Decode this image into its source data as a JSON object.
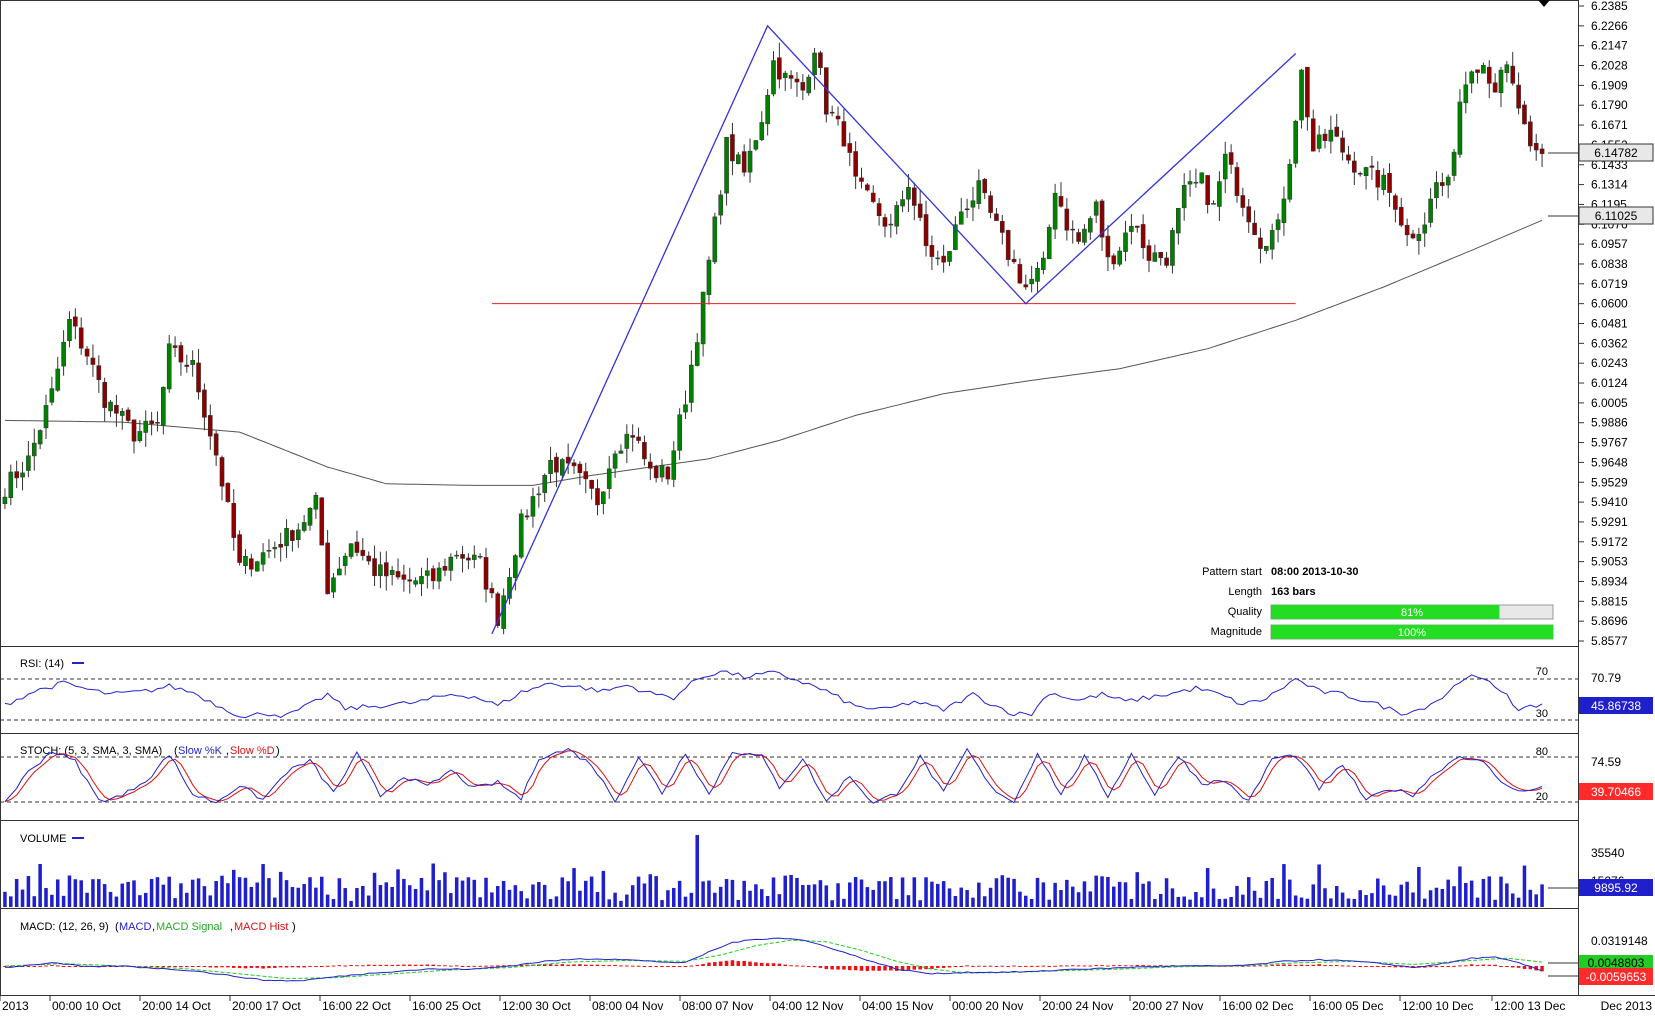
{
  "price_panel": {
    "y_ticks": [
      "6.2385",
      "6.2266",
      "6.2147",
      "6.2028",
      "6.1909",
      "6.1790",
      "6.1671",
      "6.1552",
      "6.1433",
      "6.1314",
      "6.1195",
      "6.1076",
      "6.0957",
      "6.0838",
      "6.0719",
      "6.0600",
      "6.0481",
      "6.0362",
      "6.0243",
      "6.0124",
      "6.0005",
      "5.9886",
      "5.9767",
      "5.9648",
      "5.9529",
      "5.9410",
      "5.9291",
      "5.9172",
      "5.9053",
      "5.8934",
      "5.8815",
      "5.8696",
      "5.8577"
    ],
    "current_price_label": "6.14782",
    "ma_label": "6.11025",
    "pattern_info": {
      "start_label": "Pattern start",
      "start_value": "08:00 2013-10-30",
      "length_label": "Length",
      "length_value": "163 bars",
      "quality_label": "Quality",
      "quality_value": "81%",
      "quality_pct": 81,
      "magnitude_label": "Magnitude",
      "magnitude_value": "100%",
      "magnitude_pct": 100
    }
  },
  "rsi_panel": {
    "title": "RSI: (14)",
    "level_high": "70",
    "level_low": "30",
    "axis_value": "70.79",
    "current_label": "45.86738"
  },
  "stoch_panel": {
    "title_prefix": "STOCH: (5, 3, SMA, 3, SMA)",
    "k_label": "Slow %K",
    "d_label": "Slow %D",
    "level_high": "80",
    "level_low": "20",
    "axis_value": "74.59",
    "current_label": "39.70466"
  },
  "volume_panel": {
    "title": "VOLUME",
    "axis_value": "35540",
    "axis_value_2": "15276",
    "current_label": "9895.92"
  },
  "macd_panel": {
    "title_prefix": "MACD: (12, 26, 9)",
    "macd_label": "MACD",
    "signal_label": "MACD Signal",
    "hist_label": "MACD Hist",
    "axis_value": "0.0319148",
    "signal_current_label": "0.0048803",
    "macd_current_label": "-0.0059653"
  },
  "x_axis": {
    "labels": [
      "2013",
      "00:00 10 Oct",
      "20:00 14 Oct",
      "20:00 17 Oct",
      "16:00 22 Oct",
      "16:00 25 Oct",
      "12:00 30 Oct",
      "08:00 04 Nov",
      "08:00 07 Nov",
      "04:00 12 Nov",
      "04:00 15 Nov",
      "00:00 20 Nov",
      "20:00 24 Nov",
      "20:00 27 Nov",
      "16:00 02 Dec",
      "16:00 05 Dec",
      "12:00 10 Dec",
      "12:00 13 Dec"
    ],
    "right_label": "Dec 2013"
  },
  "chart_data": {
    "type": "candlestick",
    "bar_count": 263,
    "price_axis": {
      "min": 5.8577,
      "max": 6.2385
    },
    "pattern_line": [
      {
        "bar": 83,
        "price": 5.862
      },
      {
        "bar": 130,
        "price": 6.2266
      },
      {
        "bar": 174,
        "price": 6.06
      },
      {
        "bar": 220,
        "price": 6.21
      }
    ],
    "support_line": {
      "from_bar": 83,
      "to_bar": 220,
      "price": 6.06
    },
    "ma_anchors": [
      [
        0,
        5.99
      ],
      [
        20,
        5.989
      ],
      [
        40,
        5.983
      ],
      [
        55,
        5.962
      ],
      [
        65,
        5.952
      ],
      [
        80,
        5.951
      ],
      [
        90,
        5.951
      ],
      [
        100,
        5.957
      ],
      [
        110,
        5.962
      ],
      [
        120,
        5.967
      ],
      [
        132,
        5.978
      ],
      [
        145,
        5.993
      ],
      [
        160,
        6.006
      ],
      [
        175,
        6.014
      ],
      [
        190,
        6.021
      ],
      [
        205,
        6.033
      ],
      [
        220,
        6.05
      ],
      [
        235,
        6.07
      ],
      [
        250,
        6.092
      ],
      [
        262,
        6.11
      ]
    ],
    "close_anchors": [
      [
        0,
        5.95
      ],
      [
        4,
        5.966
      ],
      [
        8,
        6.006
      ],
      [
        11,
        6.049
      ],
      [
        14,
        6.03
      ],
      [
        17,
        6.003
      ],
      [
        22,
        5.982
      ],
      [
        26,
        5.987
      ],
      [
        28,
        6.031
      ],
      [
        32,
        6.022
      ],
      [
        36,
        5.97
      ],
      [
        40,
        5.902
      ],
      [
        45,
        5.912
      ],
      [
        50,
        5.926
      ],
      [
        53,
        5.94
      ],
      [
        55,
        5.89
      ],
      [
        59,
        5.917
      ],
      [
        63,
        5.9
      ],
      [
        68,
        5.893
      ],
      [
        73,
        5.895
      ],
      [
        77,
        5.911
      ],
      [
        81,
        5.904
      ],
      [
        84,
        5.872
      ],
      [
        88,
        5.928
      ],
      [
        93,
        5.965
      ],
      [
        97,
        5.958
      ],
      [
        101,
        5.942
      ],
      [
        104,
        5.975
      ],
      [
        107,
        5.983
      ],
      [
        110,
        5.959
      ],
      [
        113,
        5.958
      ],
      [
        116,
        6.004
      ],
      [
        119,
        6.062
      ],
      [
        121,
        6.107
      ],
      [
        123,
        6.155
      ],
      [
        126,
        6.138
      ],
      [
        129,
        6.172
      ],
      [
        131,
        6.205
      ],
      [
        133,
        6.195
      ],
      [
        136,
        6.188
      ],
      [
        138,
        6.215
      ],
      [
        140,
        6.178
      ],
      [
        143,
        6.16
      ],
      [
        145,
        6.132
      ],
      [
        148,
        6.118
      ],
      [
        151,
        6.105
      ],
      [
        154,
        6.133
      ],
      [
        157,
        6.094
      ],
      [
        160,
        6.082
      ],
      [
        163,
        6.116
      ],
      [
        166,
        6.128
      ],
      [
        168,
        6.113
      ],
      [
        171,
        6.09
      ],
      [
        174,
        6.07
      ],
      [
        177,
        6.082
      ],
      [
        179,
        6.13
      ],
      [
        181,
        6.108
      ],
      [
        183,
        6.097
      ],
      [
        186,
        6.118
      ],
      [
        188,
        6.085
      ],
      [
        190,
        6.094
      ],
      [
        192,
        6.11
      ],
      [
        195,
        6.089
      ],
      [
        198,
        6.088
      ],
      [
        201,
        6.126
      ],
      [
        204,
        6.133
      ],
      [
        206,
        6.117
      ],
      [
        208,
        6.147
      ],
      [
        211,
        6.122
      ],
      [
        214,
        6.098
      ],
      [
        217,
        6.105
      ],
      [
        219,
        6.148
      ],
      [
        221,
        6.198
      ],
      [
        223,
        6.152
      ],
      [
        226,
        6.162
      ],
      [
        229,
        6.147
      ],
      [
        232,
        6.138
      ],
      [
        235,
        6.132
      ],
      [
        237,
        6.121
      ],
      [
        239,
        6.1
      ],
      [
        242,
        6.11
      ],
      [
        244,
        6.132
      ],
      [
        246,
        6.13
      ],
      [
        248,
        6.182
      ],
      [
        250,
        6.205
      ],
      [
        252,
        6.204
      ],
      [
        254,
        6.19
      ],
      [
        256,
        6.2
      ],
      [
        258,
        6.178
      ],
      [
        260,
        6.149
      ],
      [
        262,
        6.148
      ]
    ],
    "rsi_anchors": [
      [
        0,
        45
      ],
      [
        5,
        58
      ],
      [
        10,
        66
      ],
      [
        14,
        60
      ],
      [
        18,
        55
      ],
      [
        24,
        58
      ],
      [
        28,
        63
      ],
      [
        32,
        57
      ],
      [
        36,
        45
      ],
      [
        41,
        32
      ],
      [
        44,
        37
      ],
      [
        48,
        34
      ],
      [
        52,
        45
      ],
      [
        55,
        55
      ],
      [
        58,
        41
      ],
      [
        64,
        44
      ],
      [
        70,
        47
      ],
      [
        76,
        55
      ],
      [
        80,
        53
      ],
      [
        84,
        44
      ],
      [
        88,
        57
      ],
      [
        93,
        66
      ],
      [
        98,
        62
      ],
      [
        102,
        58
      ],
      [
        106,
        64
      ],
      [
        110,
        56
      ],
      [
        114,
        52
      ],
      [
        118,
        70
      ],
      [
        122,
        78
      ],
      [
        126,
        72
      ],
      [
        131,
        76
      ],
      [
        135,
        69
      ],
      [
        140,
        58
      ],
      [
        145,
        43
      ],
      [
        150,
        40
      ],
      [
        155,
        48
      ],
      [
        160,
        40
      ],
      [
        165,
        55
      ],
      [
        168,
        46
      ],
      [
        172,
        36
      ],
      [
        175,
        36
      ],
      [
        178,
        57
      ],
      [
        183,
        49
      ],
      [
        187,
        55
      ],
      [
        191,
        48
      ],
      [
        195,
        52
      ],
      [
        199,
        56
      ],
      [
        203,
        61
      ],
      [
        207,
        55
      ],
      [
        211,
        45
      ],
      [
        215,
        51
      ],
      [
        220,
        70
      ],
      [
        224,
        58
      ],
      [
        228,
        55
      ],
      [
        233,
        47
      ],
      [
        238,
        37
      ],
      [
        241,
        40
      ],
      [
        245,
        52
      ],
      [
        249,
        73
      ],
      [
        252,
        69
      ],
      [
        256,
        56
      ],
      [
        258,
        38
      ],
      [
        262,
        46
      ]
    ],
    "stoch_k_anchors": [
      [
        0,
        20
      ],
      [
        4,
        60
      ],
      [
        8,
        88
      ],
      [
        12,
        74
      ],
      [
        16,
        22
      ],
      [
        20,
        28
      ],
      [
        25,
        55
      ],
      [
        28,
        84
      ],
      [
        32,
        30
      ],
      [
        36,
        20
      ],
      [
        40,
        42
      ],
      [
        44,
        23
      ],
      [
        48,
        60
      ],
      [
        52,
        75
      ],
      [
        56,
        32
      ],
      [
        60,
        84
      ],
      [
        64,
        28
      ],
      [
        68,
        55
      ],
      [
        72,
        40
      ],
      [
        76,
        62
      ],
      [
        80,
        38
      ],
      [
        84,
        46
      ],
      [
        88,
        24
      ],
      [
        91,
        79
      ],
      [
        96,
        90
      ],
      [
        100,
        70
      ],
      [
        104,
        22
      ],
      [
        108,
        80
      ],
      [
        112,
        32
      ],
      [
        116,
        86
      ],
      [
        120,
        30
      ],
      [
        124,
        88
      ],
      [
        129,
        80
      ],
      [
        132,
        40
      ],
      [
        136,
        78
      ],
      [
        140,
        20
      ],
      [
        144,
        55
      ],
      [
        148,
        18
      ],
      [
        152,
        32
      ],
      [
        156,
        80
      ],
      [
        160,
        32
      ],
      [
        164,
        90
      ],
      [
        168,
        40
      ],
      [
        172,
        20
      ],
      [
        176,
        86
      ],
      [
        180,
        30
      ],
      [
        184,
        80
      ],
      [
        188,
        28
      ],
      [
        192,
        84
      ],
      [
        196,
        30
      ],
      [
        200,
        82
      ],
      [
        204,
        45
      ],
      [
        208,
        48
      ],
      [
        212,
        20
      ],
      [
        216,
        78
      ],
      [
        220,
        82
      ],
      [
        224,
        38
      ],
      [
        228,
        70
      ],
      [
        232,
        22
      ],
      [
        236,
        38
      ],
      [
        240,
        30
      ],
      [
        244,
        60
      ],
      [
        248,
        82
      ],
      [
        252,
        72
      ],
      [
        256,
        40
      ],
      [
        260,
        35
      ],
      [
        262,
        39
      ]
    ],
    "volume_bars_note": "blue histogram, approx 263 bars",
    "macd_anchors": [
      [
        0,
        -0.002
      ],
      [
        8,
        0.004
      ],
      [
        14,
        -0.001
      ],
      [
        20,
        0.0
      ],
      [
        26,
        -0.003
      ],
      [
        32,
        -0.006
      ],
      [
        38,
        -0.012
      ],
      [
        44,
        -0.018
      ],
      [
        50,
        -0.019
      ],
      [
        56,
        -0.014
      ],
      [
        64,
        -0.008
      ],
      [
        72,
        -0.004
      ],
      [
        80,
        -0.004
      ],
      [
        86,
        0.0
      ],
      [
        92,
        0.006
      ],
      [
        98,
        0.009
      ],
      [
        104,
        0.009
      ],
      [
        110,
        0.006
      ],
      [
        116,
        0.004
      ],
      [
        120,
        0.018
      ],
      [
        124,
        0.03
      ],
      [
        128,
        0.034
      ],
      [
        132,
        0.036
      ],
      [
        136,
        0.033
      ],
      [
        140,
        0.025
      ],
      [
        146,
        0.01
      ],
      [
        152,
        -0.004
      ],
      [
        158,
        -0.01
      ],
      [
        164,
        -0.008
      ],
      [
        170,
        -0.008
      ],
      [
        176,
        -0.007
      ],
      [
        182,
        -0.004
      ],
      [
        188,
        -0.003
      ],
      [
        194,
        -0.001
      ],
      [
        200,
        0.0
      ],
      [
        206,
        0.0
      ],
      [
        212,
        0.001
      ],
      [
        218,
        0.006
      ],
      [
        224,
        0.008
      ],
      [
        230,
        0.006
      ],
      [
        236,
        0.002
      ],
      [
        240,
        -0.002
      ],
      [
        246,
        0.004
      ],
      [
        250,
        0.01
      ],
      [
        254,
        0.011
      ],
      [
        258,
        0.004
      ],
      [
        262,
        -0.006
      ]
    ],
    "signal_anchors": [
      [
        0,
        0.0
      ],
      [
        10,
        0.003
      ],
      [
        20,
        0.0
      ],
      [
        30,
        -0.003
      ],
      [
        40,
        -0.01
      ],
      [
        48,
        -0.016
      ],
      [
        56,
        -0.015
      ],
      [
        66,
        -0.01
      ],
      [
        76,
        -0.005
      ],
      [
        86,
        -0.002
      ],
      [
        96,
        0.005
      ],
      [
        106,
        0.007
      ],
      [
        116,
        0.006
      ],
      [
        122,
        0.014
      ],
      [
        128,
        0.026
      ],
      [
        134,
        0.033
      ],
      [
        140,
        0.031
      ],
      [
        146,
        0.02
      ],
      [
        152,
        0.006
      ],
      [
        158,
        -0.004
      ],
      [
        164,
        -0.009
      ],
      [
        172,
        -0.008
      ],
      [
        180,
        -0.006
      ],
      [
        190,
        -0.004
      ],
      [
        200,
        -0.001
      ],
      [
        210,
        0.0
      ],
      [
        220,
        0.004
      ],
      [
        230,
        0.006
      ],
      [
        240,
        0.002
      ],
      [
        250,
        0.007
      ],
      [
        256,
        0.01
      ],
      [
        262,
        0.005
      ]
    ]
  },
  "colors": {
    "bull": "#008000",
    "bear": "#8b0000",
    "pattern": "#3333dd",
    "support": "#dd2222",
    "ma": "#555555",
    "rsi": "#2222cc",
    "stoch_k": "#2222cc",
    "stoch_d": "#dd1111",
    "volume": "#1f1fcc",
    "macd": "#2222cc",
    "signal": "#22cc22",
    "hist": "#ee1111",
    "label_blue": "#1f1fcc",
    "label_red": "#ff2a2a",
    "label_green": "#22cc22",
    "label_gray": "#e8e8e8",
    "bar_green": "#22dd22"
  }
}
